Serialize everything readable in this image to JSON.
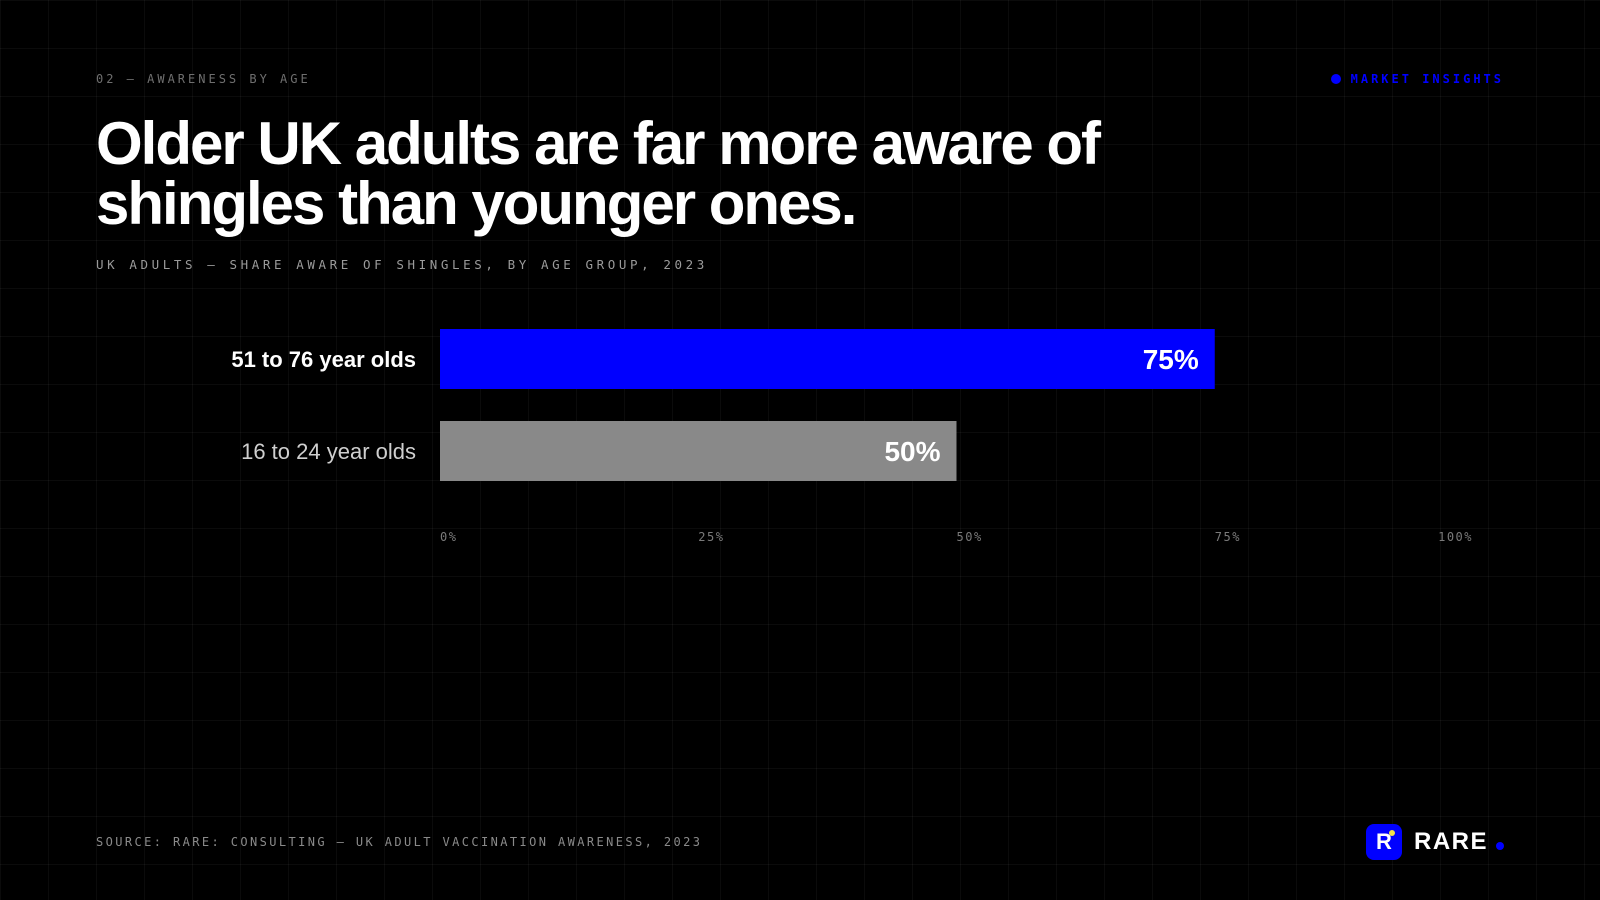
{
  "header": {
    "kicker": "02 — AWARENESS BY AGE",
    "badge": "MARKET INSIGHTS"
  },
  "headline": "Older UK adults are far more aware of shingles than younger ones.",
  "subtitle": "UK ADULTS — SHARE AWARE OF SHINGLES, BY AGE GROUP, 2023",
  "chart_data": {
    "type": "bar",
    "orientation": "horizontal",
    "categories": [
      "51 to 76 year olds",
      "16 to 24 year olds"
    ],
    "values": [
      75,
      50
    ],
    "value_labels": [
      "75%",
      "50%"
    ],
    "bar_colors": [
      "#0000ff",
      "#898989"
    ],
    "xlim": [
      0,
      100
    ],
    "x_ticks": [
      0,
      25,
      50,
      75,
      100
    ],
    "x_tick_labels": [
      "0%",
      "25%",
      "50%",
      "75%",
      "100%"
    ],
    "title": "",
    "xlabel": "",
    "ylabel": "",
    "legend": "none",
    "grid": false
  },
  "footer": {
    "source": "SOURCE: RARE: CONSULTING — UK ADULT VACCINATION AWARENESS, 2023",
    "logo_mark": "R",
    "logo_text": "RARE"
  },
  "colors": {
    "accent": "#0000ff",
    "logo_spark": "#f2e24a",
    "background": "#000000"
  }
}
